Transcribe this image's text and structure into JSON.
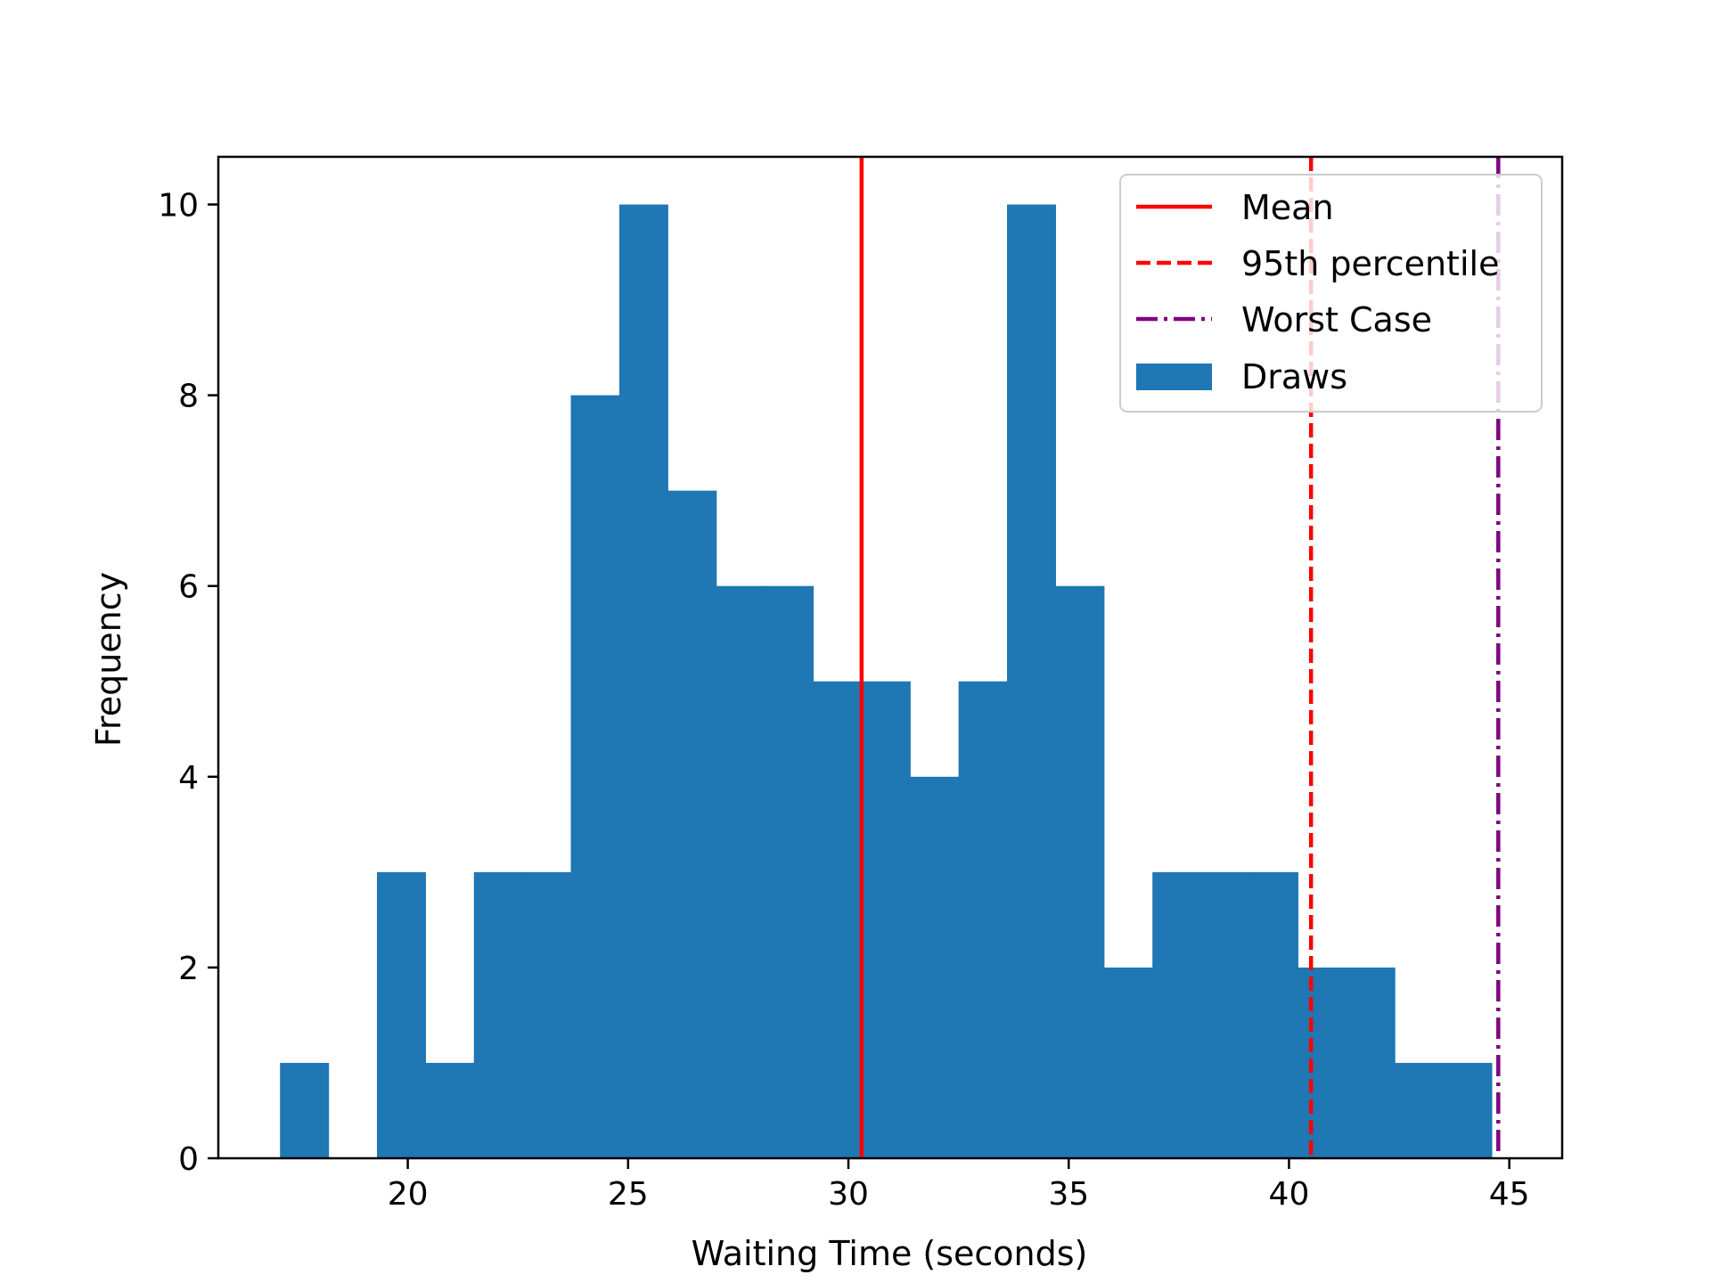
{
  "chart_data": {
    "type": "bar",
    "title": "",
    "xlabel": "Waiting Time (seconds)",
    "ylabel": "Frequency",
    "xlim": [
      15.7,
      46.2
    ],
    "ylim": [
      0,
      10.5
    ],
    "xticks": [
      "20",
      "25",
      "30",
      "35",
      "40",
      "45"
    ],
    "yticks": [
      "0",
      "2",
      "4",
      "6",
      "8",
      "10"
    ],
    "grid": false,
    "legend_position": "top-right",
    "histogram": {
      "name": "Draws",
      "color": "#1f77b4",
      "bin_start": 17.1,
      "bin_width": 1.1,
      "counts": [
        1,
        0,
        3,
        1,
        3,
        3,
        8,
        10,
        7,
        6,
        6,
        5,
        5,
        4,
        5,
        10,
        6,
        2,
        3,
        3,
        3,
        2,
        2,
        1,
        1
      ]
    },
    "reference_lines": [
      {
        "name": "Mean",
        "x": 30.3,
        "color": "#ff0000",
        "style": "solid"
      },
      {
        "name": "95th percentile",
        "x": 40.5,
        "color": "#ff0000",
        "style": "dashed"
      },
      {
        "name": "Worst Case",
        "x": 44.75,
        "color": "#800080",
        "style": "dashdot"
      }
    ],
    "legend": [
      "Mean",
      "95th percentile",
      "Worst Case",
      "Draws"
    ]
  }
}
